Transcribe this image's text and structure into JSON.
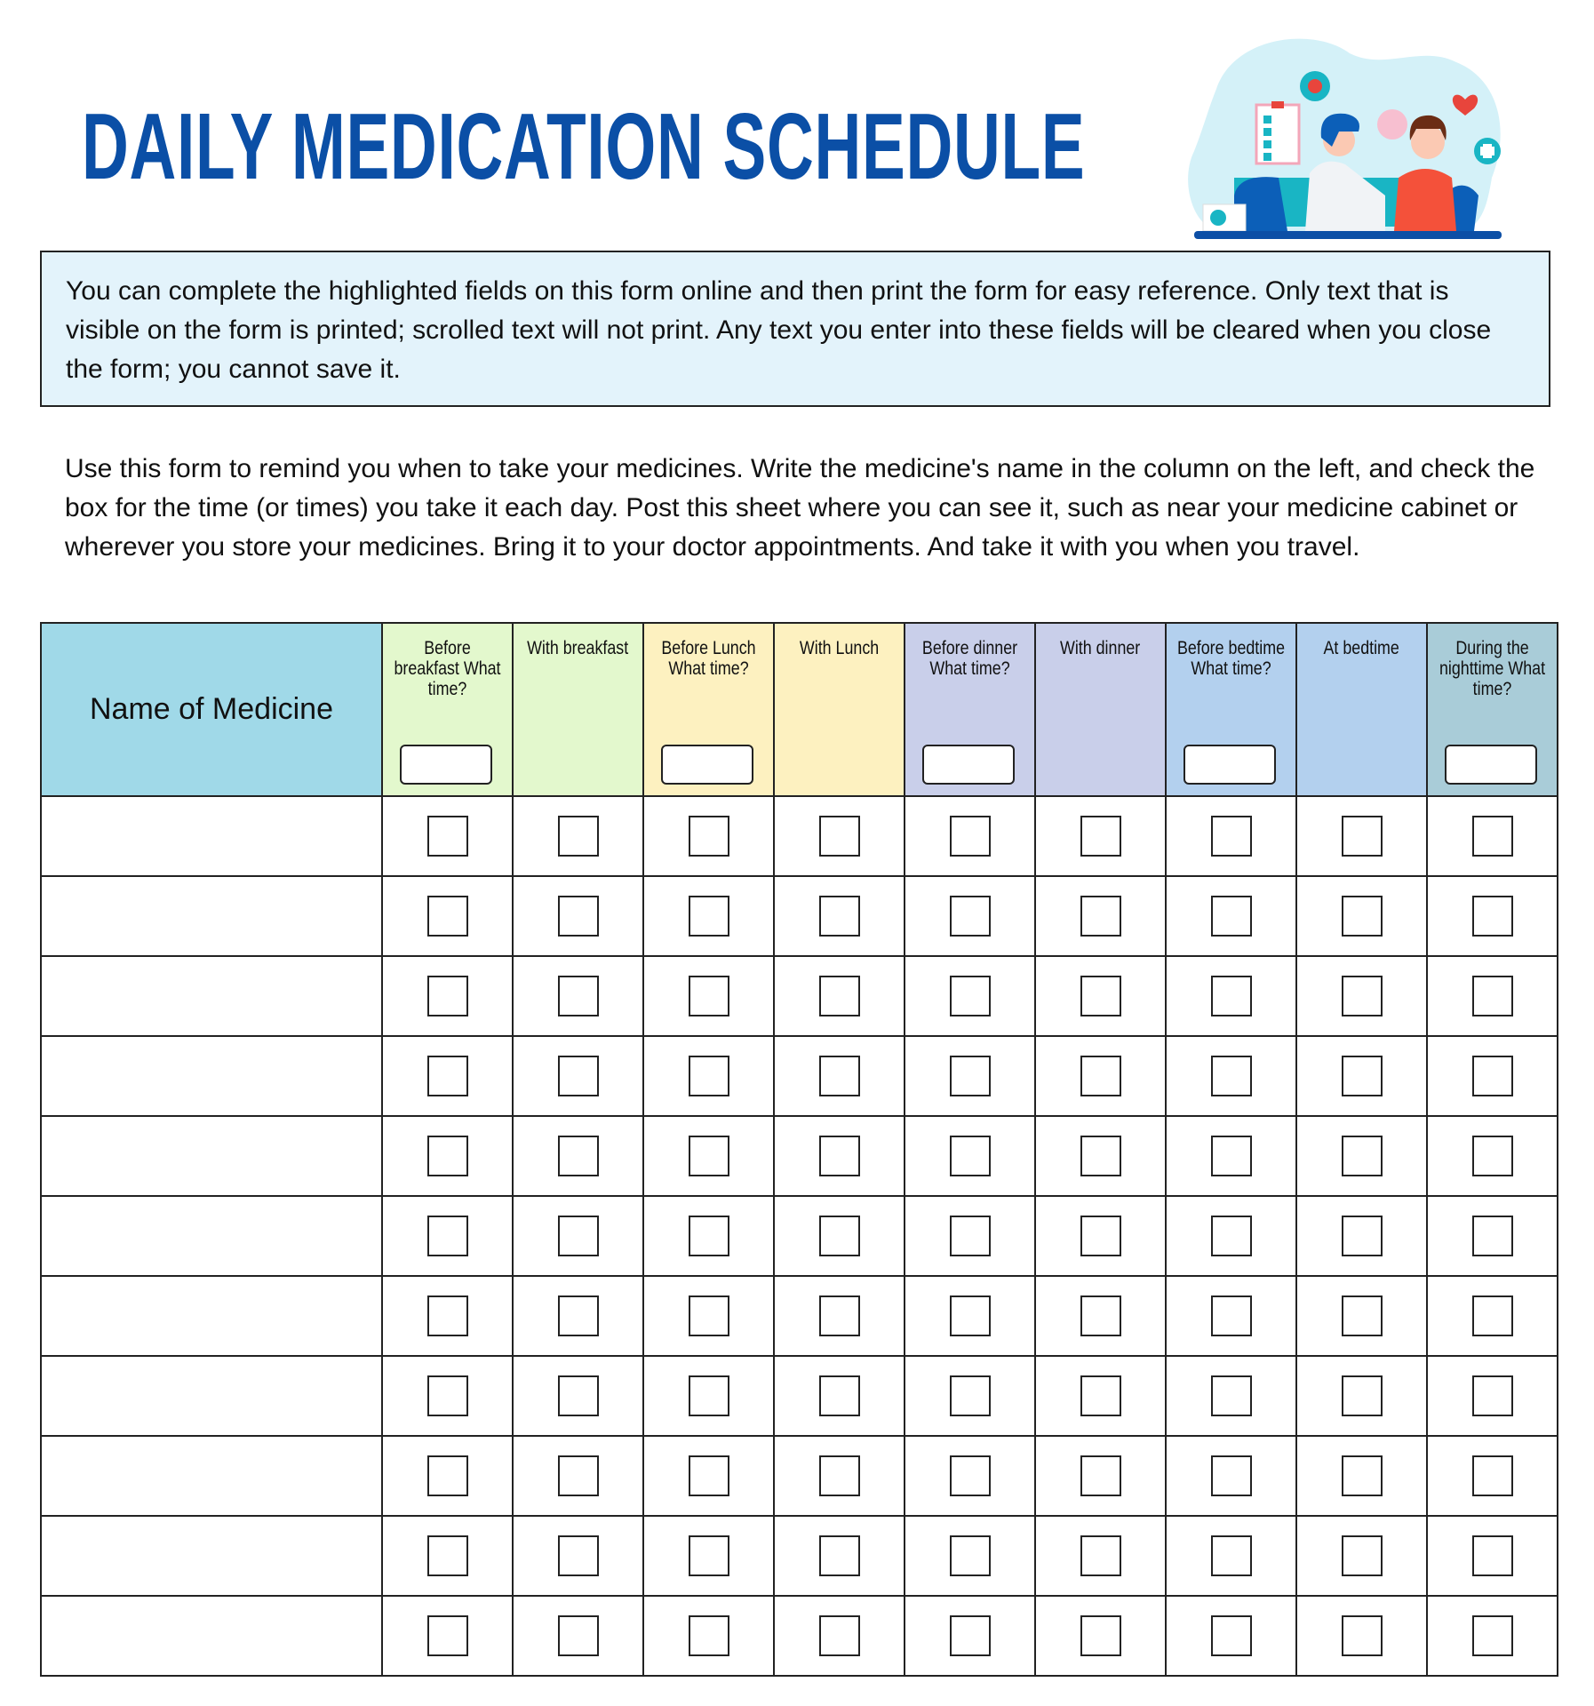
{
  "title": "DAILY MEDICATION SCHEDULE",
  "info_text": "You can complete the highlighted fields on this form online and then print the form for easy reference. Only text that is visible on the form is printed; scrolled text will not print. Any text you enter into these fields will be cleared when you close the form; you cannot save it.",
  "intro_text": "Use this form to remind you when to take your medicines. Write the medicine's name in the column on the left, and check the box for the time (or times) you take it each day. Post this sheet where you can see it, such as near your medicine cabinet or wherever you store your medicines. Bring it to your doctor appointments. And take it with you when you travel.",
  "illustration": "doctor-examining-patient-illustration",
  "table": {
    "name_header": "Name of Medicine",
    "name_header_color": "#a0d9e8",
    "columns": [
      {
        "label": "Before breakfast What time?",
        "time_field": true,
        "color": "#e3f8cd"
      },
      {
        "label": "With breakfast",
        "time_field": false,
        "color": "#e3f8cd"
      },
      {
        "label": "Before Lunch What time?",
        "time_field": true,
        "color": "#fdf1c0"
      },
      {
        "label": "With Lunch",
        "time_field": false,
        "color": "#fdf1c0"
      },
      {
        "label": "Before dinner What time?",
        "time_field": true,
        "color": "#c9cfea"
      },
      {
        "label": "With dinner",
        "time_field": false,
        "color": "#c9cfea"
      },
      {
        "label": "Before bedtime What time?",
        "time_field": true,
        "color": "#b3d0ee"
      },
      {
        "label": "At bedtime",
        "time_field": false,
        "color": "#b3d0ee"
      },
      {
        "label": "During the nighttime What time?",
        "time_field": true,
        "color": "#a9ccd8"
      }
    ],
    "rows": [
      "",
      "",
      "",
      "",
      "",
      "",
      "",
      "",
      "",
      "",
      ""
    ]
  },
  "colors": {
    "title": "#0b4fa6",
    "info_bg": "#e3f3fb"
  }
}
